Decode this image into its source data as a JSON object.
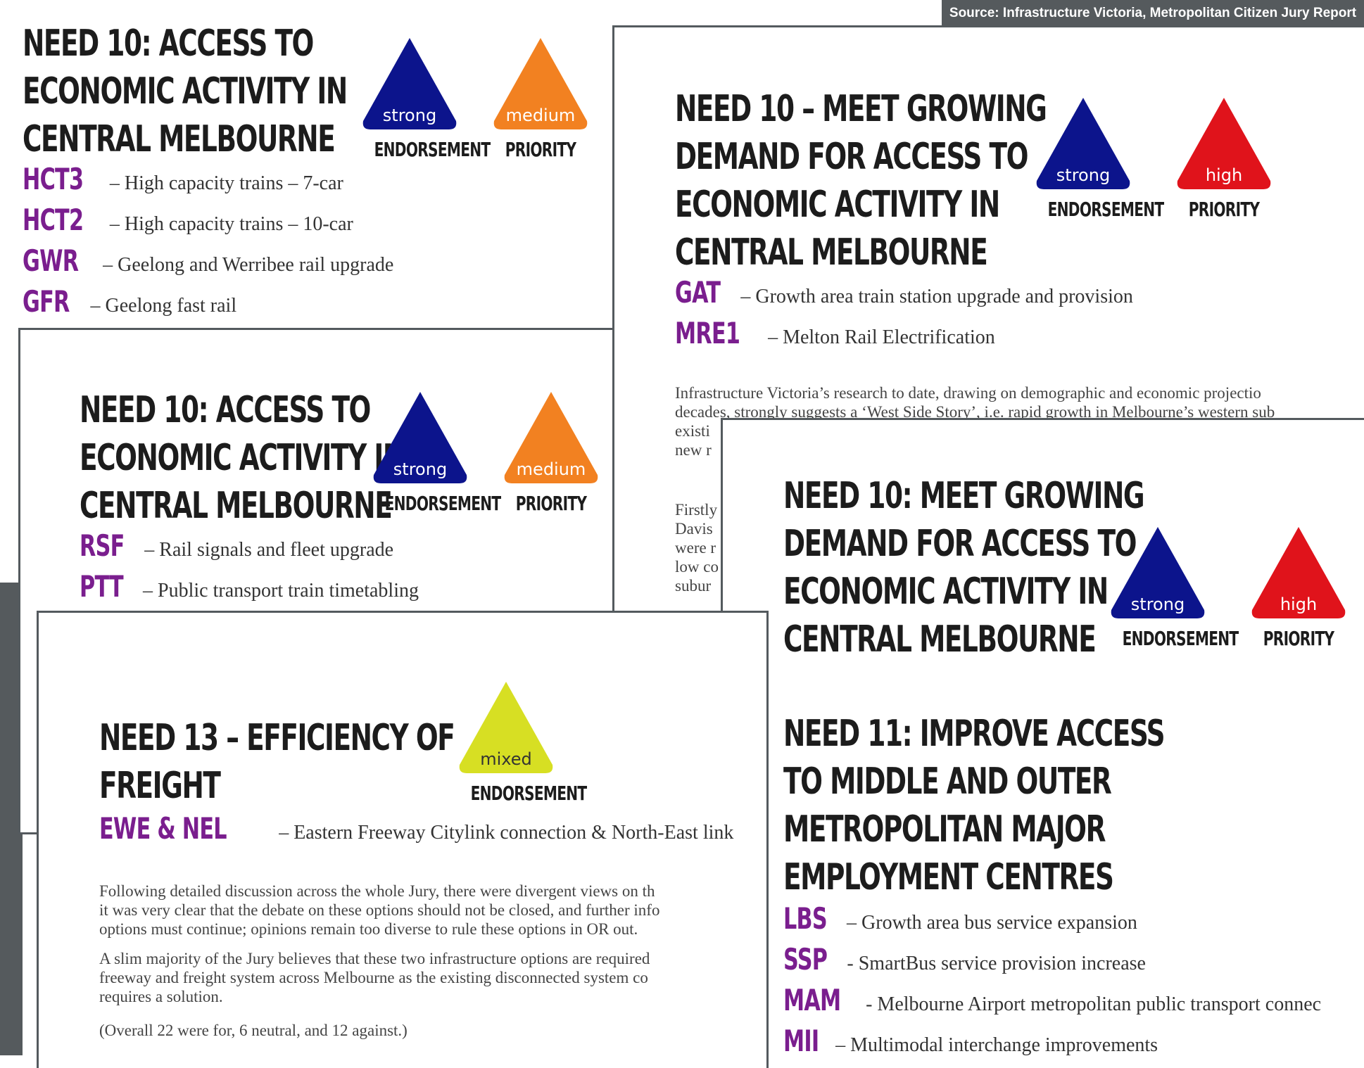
{
  "source": "Source: Infrastructure Victoria, Metropolitan Citizen Jury Report",
  "card1": {
    "title": [
      "NEED 10: ACCESS TO",
      "ECONOMIC ACTIVITY IN",
      "CENTRAL MELBOURNE"
    ],
    "endorsement": {
      "word": "strong",
      "caption": "ENDORSEMENT",
      "color": "#0c148c"
    },
    "priority": {
      "word": "medium",
      "caption": "PRIORITY",
      "color": "#f28121"
    },
    "options": [
      {
        "code": "HCT3",
        "desc": "– High capacity trains – 7-car"
      },
      {
        "code": "HCT2",
        "desc": "– High capacity trains – 10-car"
      },
      {
        "code": "GWR",
        "desc": "– Geelong and Werribee rail upgrade"
      },
      {
        "code": "GFR",
        "desc": "– Geelong fast rail"
      }
    ]
  },
  "card2": {
    "title": [
      "NEED 10 – MEET GROWING",
      "DEMAND FOR ACCESS TO",
      "ECONOMIC ACTIVITY IN",
      "CENTRAL MELBOURNE"
    ],
    "endorsement": {
      "word": "strong",
      "caption": "ENDORSEMENT",
      "color": "#0c148c"
    },
    "priority": {
      "word": "high",
      "caption": "PRIORITY",
      "color": "#e0131b"
    },
    "options": [
      {
        "code": "GAT",
        "desc": "– Growth area train station upgrade and provision"
      },
      {
        "code": "MRE1",
        "desc": "– Melton Rail Electrification"
      }
    ],
    "para1": [
      "Infrastructure Victoria’s research to date, drawing on demographic and economic projectio",
      "decades, strongly suggests a ‘West Side Story’, i.e. rapid growth in Melbourne’s western sub",
      "existi",
      "new r"
    ],
    "para2": [
      "Firstly",
      "Davis",
      "were r",
      "low co",
      "subur"
    ]
  },
  "card3": {
    "title": [
      "NEED 10: ACCESS TO",
      "ECONOMIC ACTIVITY IN",
      "CENTRAL MELBOURNE"
    ],
    "endorsement": {
      "word": "strong",
      "caption": "ENDORSEMENT",
      "color": "#0c148c"
    },
    "priority": {
      "word": "medium",
      "caption": "PRIORITY",
      "color": "#f28121"
    },
    "options": [
      {
        "code": "RSF",
        "desc": "– Rail signals and fleet upgrade"
      },
      {
        "code": "PTT",
        "desc": "– Public transport train timetabling"
      }
    ]
  },
  "card4": {
    "title": [
      "NEED 10: MEET GROWING",
      "DEMAND FOR ACCESS TO",
      "ECONOMIC ACTIVITY IN",
      "CENTRAL MELBOURNE"
    ],
    "endorsement": {
      "word": "strong",
      "caption": "ENDORSEMENT",
      "color": "#0c148c"
    },
    "priority": {
      "word": "high",
      "caption": "PRIORITY",
      "color": "#e0131b"
    },
    "title2": [
      "NEED 11: IMPROVE ACCESS",
      "TO MIDDLE AND OUTER",
      "METROPOLITAN MAJOR",
      "EMPLOYMENT CENTRES"
    ],
    "options": [
      {
        "code": "LBS",
        "desc": "– Growth area bus service expansion"
      },
      {
        "code": "SSP",
        "desc": "- SmartBus service provision increase"
      },
      {
        "code": "MAM",
        "desc": "- Melbourne Airport metropolitan public transport connec"
      },
      {
        "code": "MII",
        "desc": "– Multimodal interchange improvements"
      }
    ]
  },
  "card5": {
    "title": [
      "NEED 13 – EFFICIENCY OF",
      "FREIGHT"
    ],
    "endorsement": {
      "word": "mixed",
      "caption": "ENDORSEMENT",
      "color": "#d7df23"
    },
    "options": [
      {
        "code": "EWE & NEL",
        "desc": "– Eastern Freeway Citylink connection & North-East link"
      }
    ],
    "para1": [
      "Following detailed discussion across the whole Jury, there were divergent views on th",
      "it was very clear that the debate on these options should not be closed, and further info",
      "options must continue; opinions remain too diverse to rule these options in OR out."
    ],
    "para2": [
      "A slim majority of the Jury believes that these two infrastructure options are required",
      "freeway and freight system across Melbourne as the existing disconnected system co",
      "requires a solution."
    ],
    "note": "(Overall 22 were for, 6 neutral, and 12 against.)"
  }
}
